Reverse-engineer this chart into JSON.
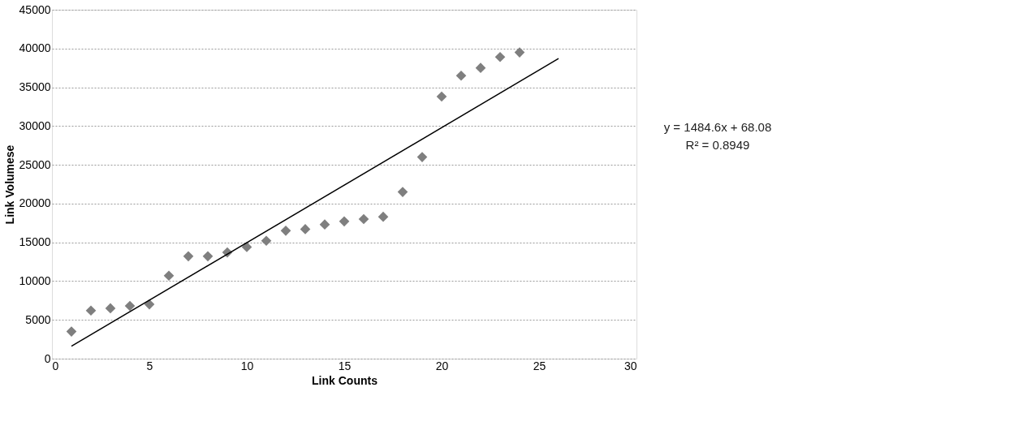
{
  "chart_data": {
    "type": "scatter",
    "xlabel": "Link Counts",
    "ylabel": "Link Volumese",
    "xlim": [
      0,
      30
    ],
    "xticks": [
      0,
      5,
      10,
      15,
      20,
      25,
      30
    ],
    "ylim": [
      0,
      45000
    ],
    "yticks": [
      0,
      5000,
      10000,
      15000,
      20000,
      25000,
      30000,
      35000,
      40000,
      45000
    ],
    "grid": "y",
    "series": [
      {
        "marker": "diamond",
        "color": "#7f7f7f",
        "x": [
          1,
          2,
          3,
          4,
          5,
          6,
          7,
          8,
          9,
          10,
          11,
          12,
          13,
          14,
          15,
          16,
          17,
          18,
          19,
          20,
          21,
          22,
          23,
          24
        ],
        "values": [
          3500,
          6200,
          6500,
          6800,
          7000,
          10700,
          13200,
          13200,
          13700,
          14400,
          15200,
          16500,
          16700,
          17300,
          17700,
          18000,
          18300,
          21500,
          26000,
          33800,
          36500,
          37500,
          38900,
          39500
        ]
      },
      {
        "type": "line",
        "color": "#000000",
        "x": [
          1,
          26
        ],
        "values": [
          1600,
          38700
        ]
      }
    ],
    "annotations": [
      "y = 1484.6x + 68.08",
      "R² = 0.8949"
    ]
  }
}
